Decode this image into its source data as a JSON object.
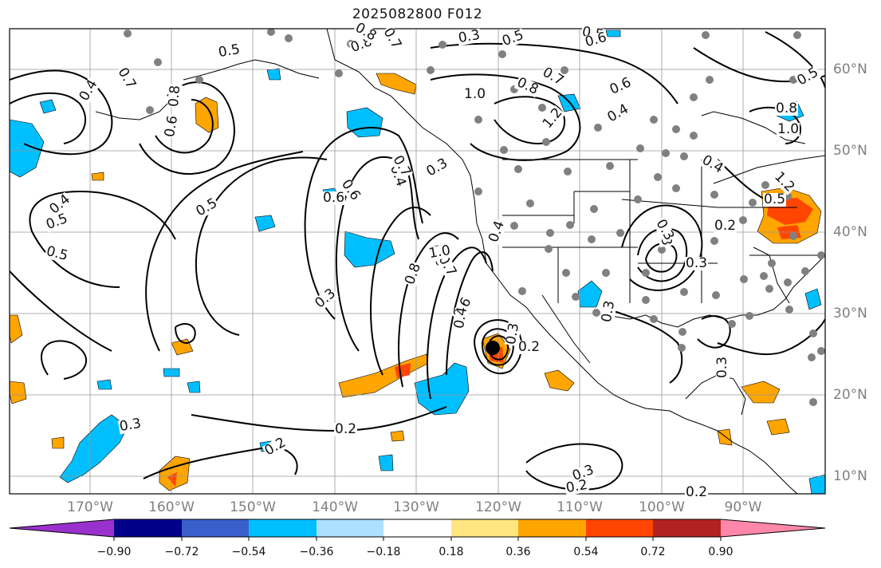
{
  "title": "2025082800 F012",
  "lat_labels": [
    "60°N",
    "50°N",
    "40°N",
    "30°N",
    "20°N",
    "10°N"
  ],
  "lon_labels": [
    "170°W",
    "160°W",
    "150°W",
    "140°W",
    "130°W",
    "120°W",
    "110°W",
    "100°W",
    "90°W"
  ],
  "contour_labels": [
    "0.5",
    "0.7",
    "0.4",
    "0.8",
    "0.6",
    "0.5",
    "0.4",
    "0.5",
    "0.5",
    "0.3",
    "0.8",
    "0.7",
    "0.3",
    "0.5",
    "0.7",
    "0.6",
    "0.8",
    "1.0",
    "1.2",
    "0.8",
    "0.4",
    "0.3",
    "0.6",
    "0.7",
    "0.5",
    "0.6",
    "0.4",
    "0.6",
    "0.4",
    "0.5",
    "0.4",
    "1.0",
    "1.2",
    "0.8",
    "0.6",
    "0.7",
    "0.8",
    "0.6",
    "0.5",
    "0.3",
    "0.4",
    "0.2",
    "0.3",
    "0.3",
    "0.3",
    "0.3",
    "0.2",
    "0.2",
    "0.3",
    "0.2",
    "0.2",
    "0.3",
    "1.0",
    "0.2",
    "0.3"
  ],
  "colorbar": {
    "ticks": [
      "−0.90",
      "−0.72",
      "−0.54",
      "−0.36",
      "−0.18",
      "0.18",
      "0.36",
      "0.54",
      "0.72",
      "0.90"
    ],
    "colors": [
      "#9932CC",
      "#00008B",
      "#3A5FCD",
      "#00BFFF",
      "#ADDFFF",
      "#FFFFFF",
      "#FFE680",
      "#FFA500",
      "#FF4500",
      "#B22222",
      "#FF88AA"
    ]
  }
}
